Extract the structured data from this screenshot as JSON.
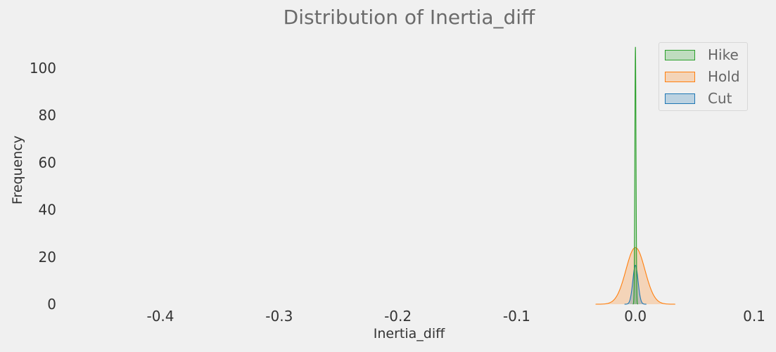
{
  "chart_data": {
    "type": "area",
    "title": "Distribution of Inertia_diff",
    "xlabel": "Inertia_diff",
    "ylabel": "Frequency",
    "xlim": [
      -0.5,
      0.1
    ],
    "ylim": [
      0,
      110
    ],
    "x_ticks": [
      "-0.4",
      "-0.3",
      "-0.2",
      "-0.1",
      "0.0",
      "0.1"
    ],
    "y_ticks": [
      "0",
      "20",
      "40",
      "60",
      "80",
      "100"
    ],
    "x_tick_values": [
      -0.4,
      -0.3,
      -0.2,
      -0.1,
      0.0,
      0.1
    ],
    "y_tick_values": [
      0,
      20,
      40,
      60,
      80,
      100
    ],
    "grid": false,
    "legend_position": "top-right",
    "series": [
      {
        "name": "Hike",
        "kind": "density",
        "mean": 0.0,
        "peak": 109,
        "std": 0.0005,
        "color": "#2ca02c",
        "fill": "rgba(44,160,44,0.25)"
      },
      {
        "name": "Hold",
        "kind": "density",
        "mean": 0.0,
        "peak": 24,
        "std": 0.008,
        "color": "#ff7f0e",
        "fill": "rgba(255,127,14,0.25)"
      },
      {
        "name": "Cut",
        "kind": "density",
        "mean": 0.0,
        "peak": 16.5,
        "std": 0.0022,
        "color": "#1f77b4",
        "fill": "rgba(31,119,180,0.25)"
      }
    ]
  }
}
